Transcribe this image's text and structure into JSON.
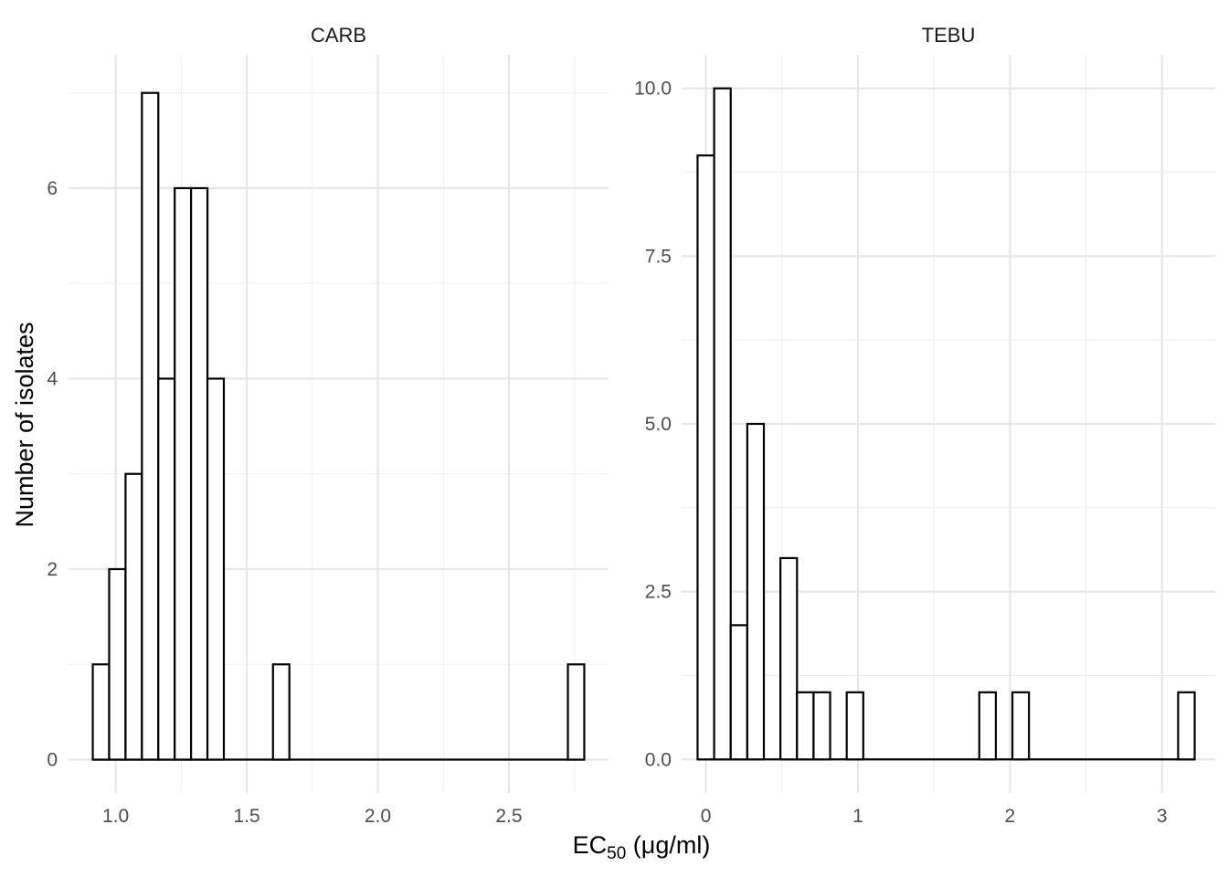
{
  "chart_data": {
    "type": "bar",
    "xlabel": {
      "main": "EC",
      "sub": "50",
      "unit": " (μg/ml)"
    },
    "ylabel": "Number of isolates",
    "grid": true,
    "legend": "none",
    "panels": [
      {
        "label": "CARB",
        "xlim": [
          0.82,
          2.88
        ],
        "ylim": [
          -0.35,
          7.4
        ],
        "x_ticks": [
          1.0,
          1.5,
          2.0,
          2.5
        ],
        "x_tick_labels": [
          "1.0",
          "1.5",
          "2.0",
          "2.5"
        ],
        "y_ticks": [
          0,
          2,
          4,
          6
        ],
        "y_tick_labels": [
          "0",
          "2",
          "4",
          "6"
        ],
        "bin_start": 0.9125,
        "bin_width": 0.0625,
        "counts": [
          1,
          2,
          3,
          7,
          4,
          6,
          6,
          4,
          0,
          0,
          0,
          1,
          0,
          0,
          0,
          0,
          0,
          0,
          0,
          0,
          0,
          0,
          0,
          0,
          0,
          0,
          0,
          0,
          0,
          1
        ]
      },
      {
        "label": "TEBU",
        "xlim": [
          -0.16,
          3.35
        ],
        "ylim": [
          -0.5,
          10.5
        ],
        "x_ticks": [
          0,
          1,
          2,
          3
        ],
        "x_tick_labels": [
          "0",
          "1",
          "2",
          "3"
        ],
        "y_ticks": [
          0,
          2.5,
          5,
          7.5,
          10
        ],
        "y_tick_labels": [
          "0.0",
          "2.5",
          "5.0",
          "7.5",
          "10.0"
        ],
        "bin_start": -0.055,
        "bin_width": 0.109,
        "counts": [
          9,
          10,
          2,
          5,
          0,
          3,
          1,
          1,
          0,
          1,
          0,
          0,
          0,
          0,
          0,
          0,
          0,
          1,
          0,
          1,
          0,
          0,
          0,
          0,
          0,
          0,
          0,
          0,
          0,
          1
        ]
      }
    ]
  }
}
